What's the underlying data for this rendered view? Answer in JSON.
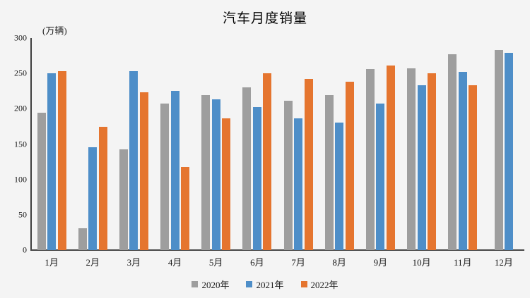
{
  "title": "汽车月度销量",
  "unit_label": "(万辆)",
  "colors": {
    "background": "#f4f4f4",
    "axis": "#464646",
    "text": "#1a1a1a",
    "series_2020": "#9e9e9e",
    "series_2021": "#4e8ec8",
    "series_2022": "#e5752f"
  },
  "chart_data": {
    "type": "bar",
    "title": "汽车月度销量",
    "ylabel": "(万辆)",
    "xlabel": "",
    "ylim": [
      0,
      300
    ],
    "yticks": [
      0,
      50,
      100,
      150,
      200,
      250,
      300
    ],
    "grid": false,
    "legend_position": "bottom",
    "categories": [
      "1月",
      "2月",
      "3月",
      "4月",
      "5月",
      "6月",
      "7月",
      "8月",
      "9月",
      "10月",
      "11月",
      "12月"
    ],
    "series": [
      {
        "name": "2020年",
        "color": "#9e9e9e",
        "values": [
          194,
          31,
          143,
          207,
          219,
          230,
          211,
          219,
          256,
          257,
          277,
          283
        ]
      },
      {
        "name": "2021年",
        "color": "#4e8ec8",
        "values": [
          250,
          146,
          253,
          225,
          213,
          202,
          186,
          180,
          207,
          233,
          252,
          279
        ]
      },
      {
        "name": "2022年",
        "color": "#e5752f",
        "values": [
          253,
          174,
          223,
          118,
          186,
          250,
          242,
          238,
          261,
          250,
          233,
          null
        ]
      }
    ]
  }
}
